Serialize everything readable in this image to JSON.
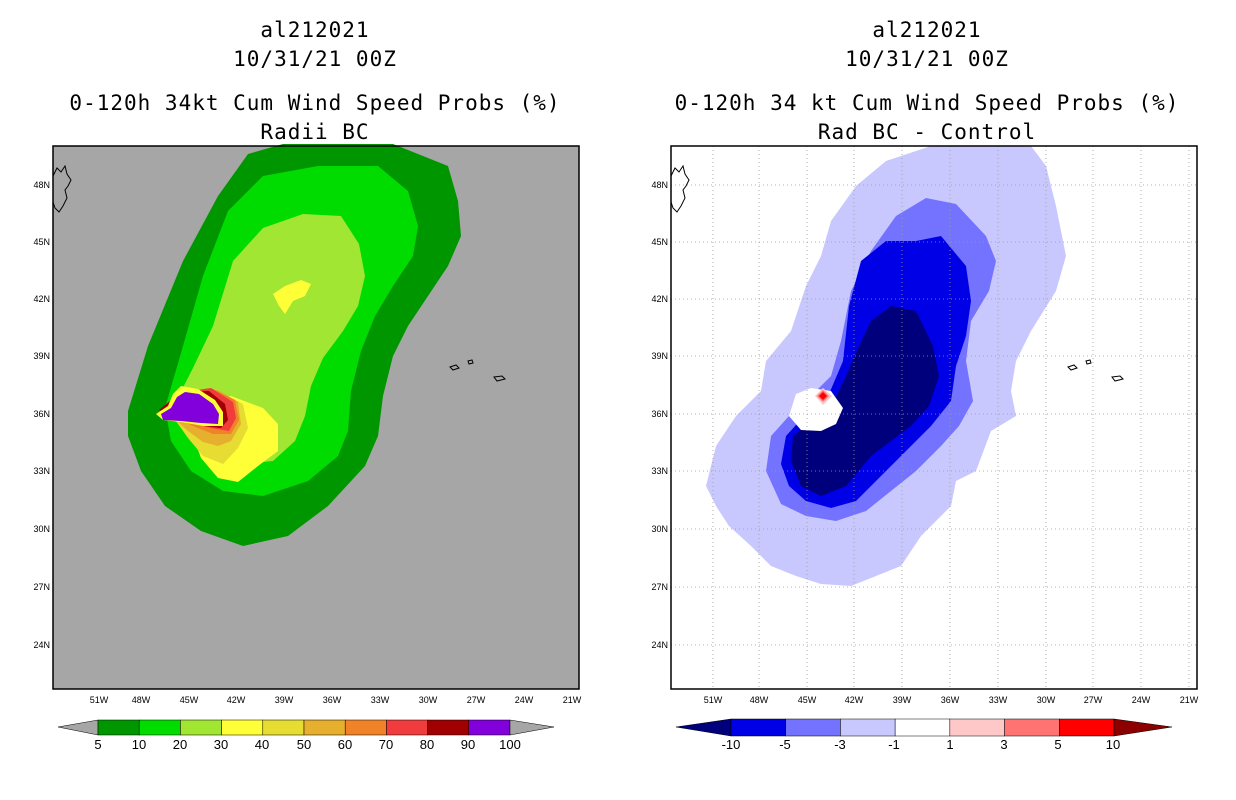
{
  "left_panel": {
    "storm_id": "al212021",
    "datetime": "10/31/21 00Z",
    "title": "0-120h 34kt Cum Wind Speed Probs (%)",
    "subtitle": "Radii BC",
    "lat_labels": [
      "48N",
      "45N",
      "42N",
      "39N",
      "36N",
      "33N",
      "30N",
      "27N",
      "24N"
    ],
    "lon_labels": [
      "51W",
      "48W",
      "45W",
      "42W",
      "39W",
      "36W",
      "33W",
      "30W",
      "27W",
      "24W",
      "21W"
    ],
    "colorbar": {
      "labels": [
        "5",
        "10",
        "20",
        "30",
        "40",
        "50",
        "60",
        "70",
        "80",
        "90",
        "100"
      ],
      "colors": [
        "#009600",
        "#00dc00",
        "#a0e632",
        "#ffff38",
        "#e6dc32",
        "#e6af2d",
        "#f08228",
        "#f03c3c",
        "#a00000",
        "#8200dc"
      ],
      "extend_color": "#a6a6a6"
    },
    "background_color": "#a6a6a6"
  },
  "right_panel": {
    "storm_id": "al212021",
    "datetime": "10/31/21 00Z",
    "title": "0-120h 34 kt Cum Wind Speed Probs (%)",
    "subtitle": "Rad BC - Control",
    "lat_labels": [
      "48N",
      "45N",
      "42N",
      "39N",
      "36N",
      "33N",
      "30N",
      "27N",
      "24N"
    ],
    "lon_labels": [
      "51W",
      "48W",
      "45W",
      "42W",
      "39W",
      "36W",
      "33W",
      "30W",
      "27W",
      "24W",
      "21W"
    ],
    "colorbar": {
      "labels": [
        "-10",
        "-5",
        "-3",
        "-1",
        "1",
        "3",
        "5",
        "10"
      ],
      "colors": [
        "#0000e6",
        "#7373ff",
        "#c8c8ff",
        "#ffffff",
        "#ffc8c8",
        "#ff7373",
        "#ff0000"
      ],
      "low_extend_color": "#00007d",
      "high_extend_color": "#8c0000"
    }
  }
}
